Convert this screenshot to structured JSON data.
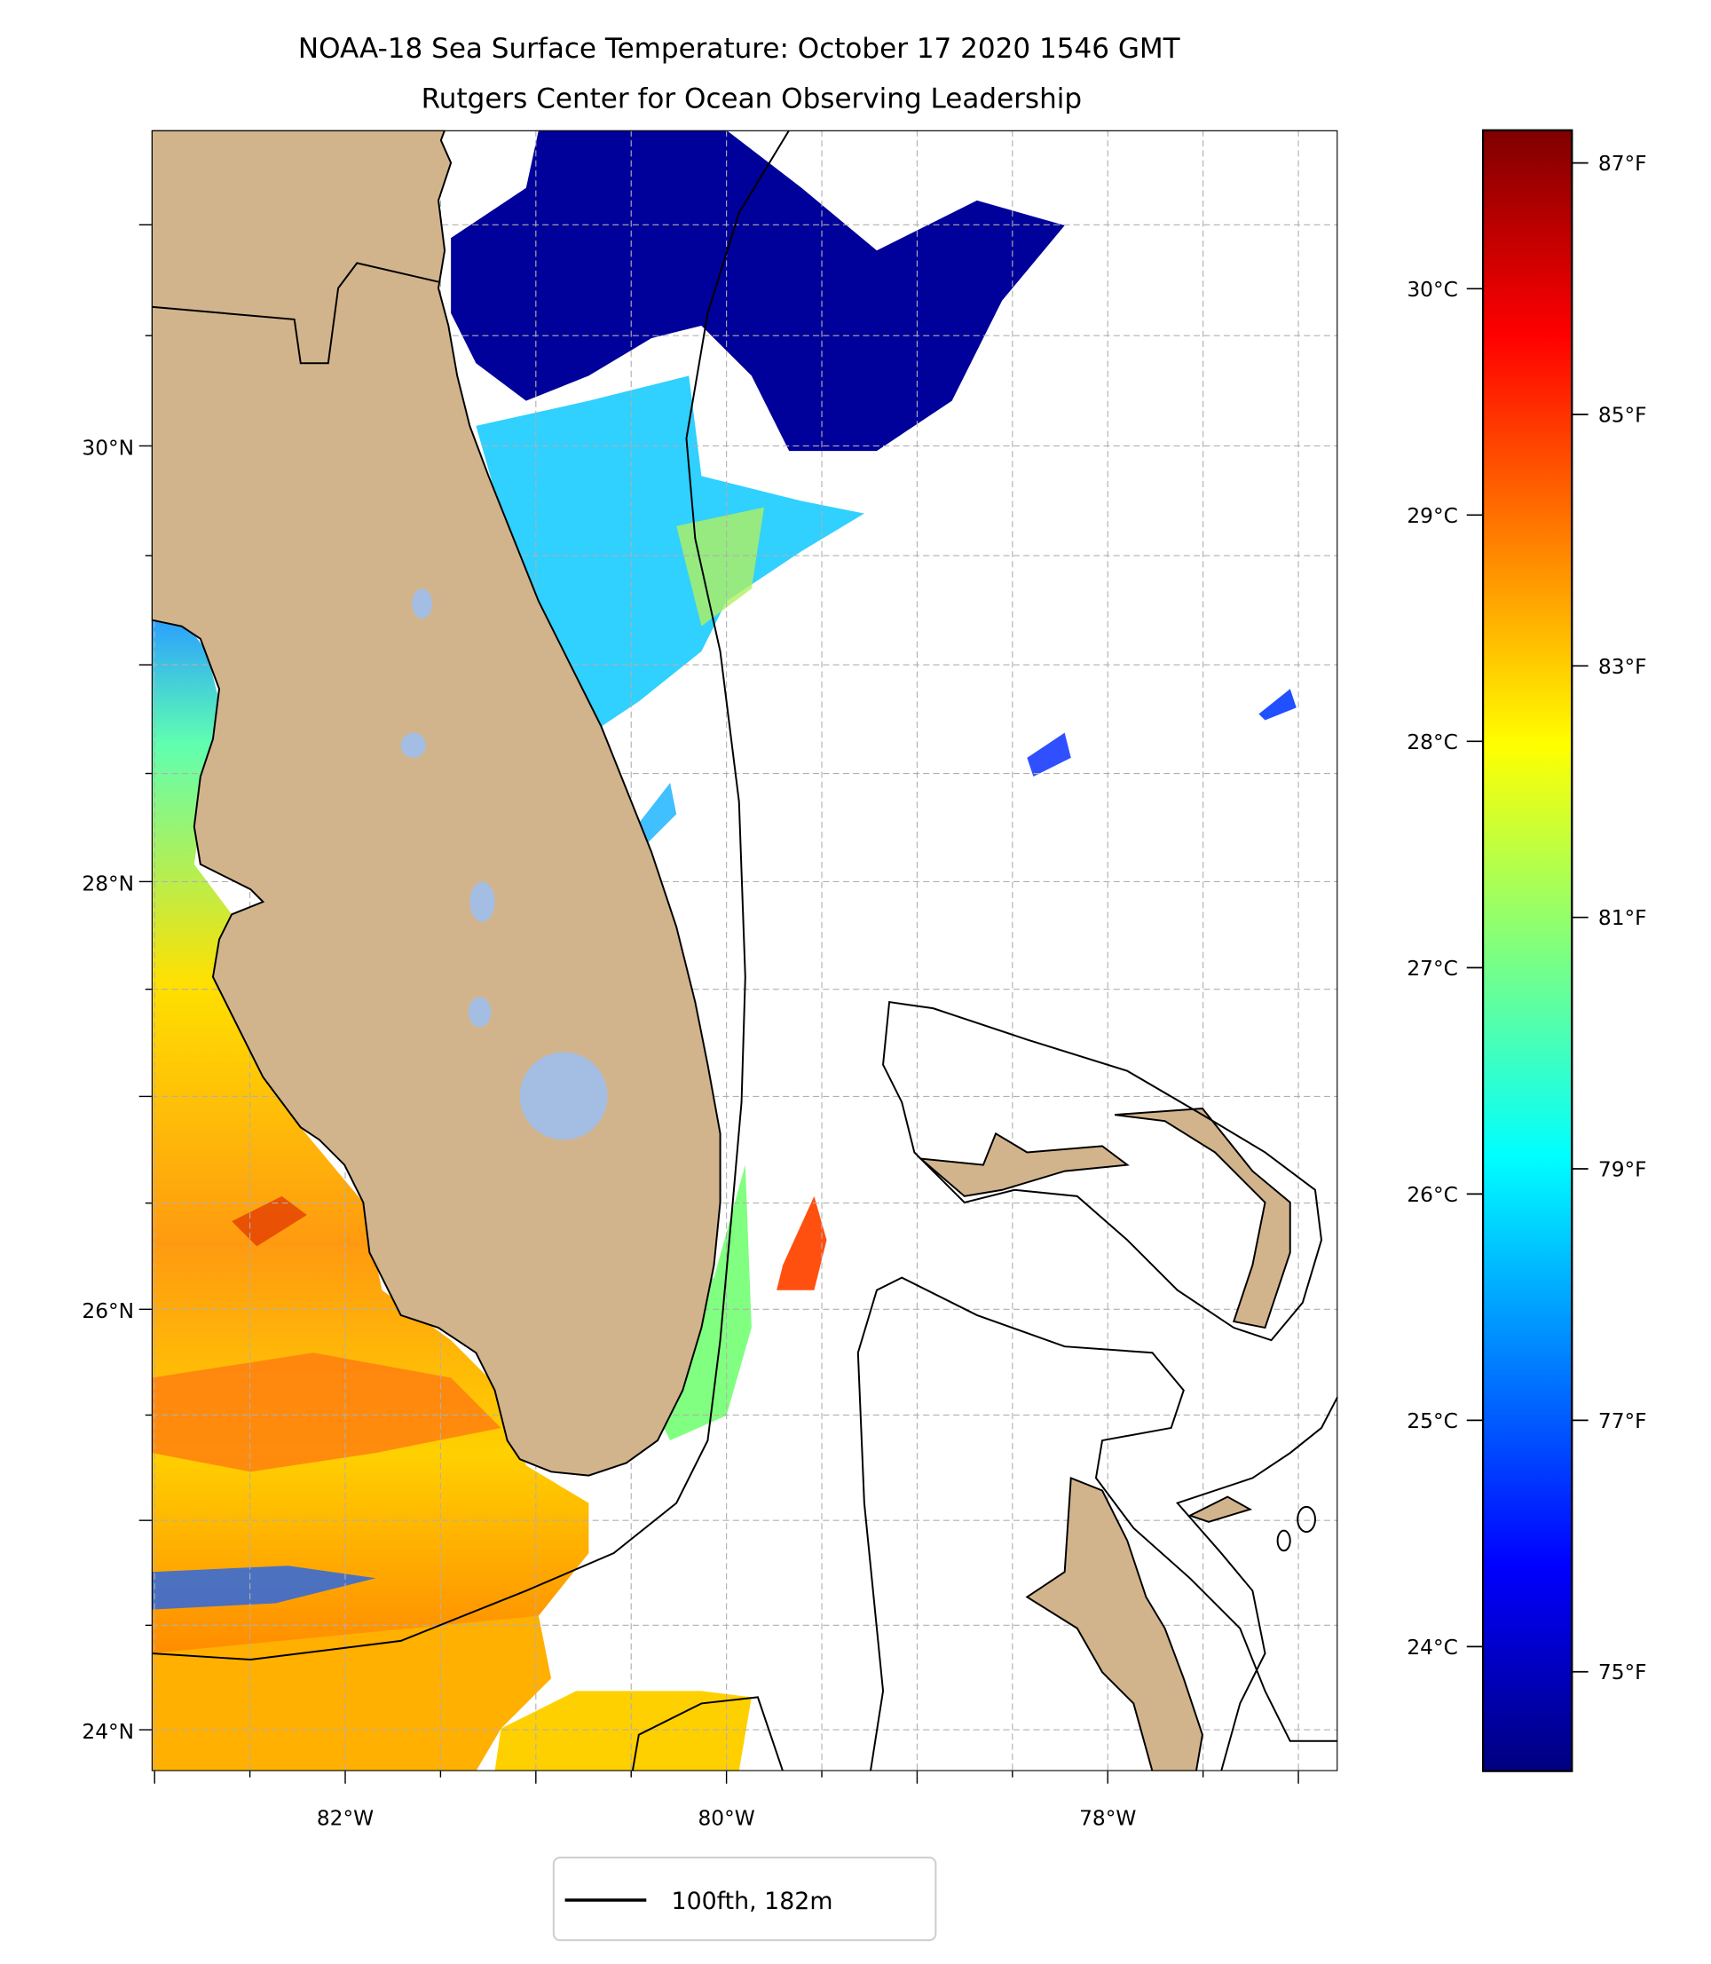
{
  "chart_data": {
    "type": "heatmap",
    "title": [
      "NOAA-18 Sea Surface Temperature: October 17 2020 1546 GMT",
      "Rutgers Center for Ocean Observing Leadership"
    ],
    "extent": {
      "lon_min": -83.03,
      "lon_max": -76.8,
      "lat_min": 23.8,
      "lat_max": 31.45
    },
    "xticks": [
      {
        "lon": -82,
        "label": "82°W"
      },
      {
        "lon": -80,
        "label": "80°W"
      },
      {
        "lon": -78,
        "label": "78°W"
      }
    ],
    "yticks": [
      {
        "lat": 30,
        "label": "30°N"
      },
      {
        "lat": 28,
        "label": "28°N"
      },
      {
        "lat": 26,
        "label": "26°N"
      },
      {
        "lat": 24,
        "label": "24°N"
      }
    ],
    "grid": true,
    "colormap": "jet",
    "colorbar": {
      "vmin_c": 23.45,
      "vmax_c": 30.7,
      "celsius_ticks": [
        {
          "v": 30,
          "label": "30°C"
        },
        {
          "v": 29,
          "label": "29°C"
        },
        {
          "v": 28,
          "label": "28°C"
        },
        {
          "v": 27,
          "label": "27°C"
        },
        {
          "v": 26,
          "label": "26°C"
        },
        {
          "v": 25,
          "label": "25°C"
        },
        {
          "v": 24,
          "label": "24°C"
        }
      ],
      "fahrenheit_ticks": [
        {
          "v": 87,
          "label": "87°F"
        },
        {
          "v": 85,
          "label": "85°F"
        },
        {
          "v": 83,
          "label": "83°F"
        },
        {
          "v": 81,
          "label": "81°F"
        },
        {
          "v": 79,
          "label": "79°F"
        },
        {
          "v": 77,
          "label": "77°F"
        },
        {
          "v": 75,
          "label": "75°F"
        }
      ]
    },
    "legend": {
      "label": "100fth, 182m",
      "placement": "bottom-center"
    },
    "colors": {
      "land": "#d2b48c",
      "lake": "#a4bde3",
      "grid": "#b0b0b0"
    }
  }
}
